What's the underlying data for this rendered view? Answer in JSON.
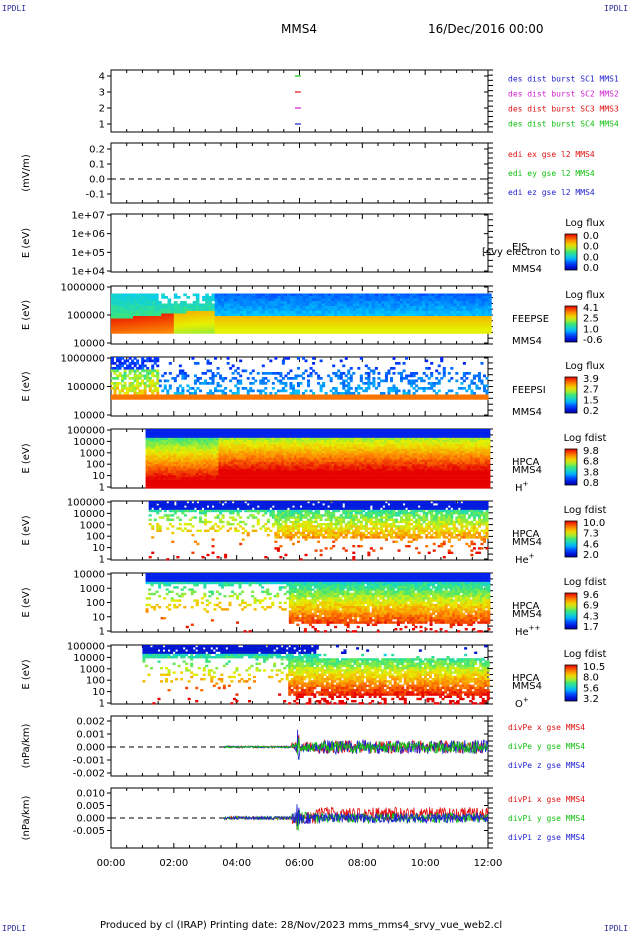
{
  "page": {
    "corner_tl": "IPDLI",
    "corner_tr": "IPDLI",
    "corner_bl": "IPDLI",
    "corner_br": "IPDLI",
    "spacecraft": "MMS4",
    "date": "16/Dec/2016 00:00",
    "footer": "Produced by cl (IRAP)   Printing date: 28/Nov/2023   mms_mms4_srvy_vue_web2.cl"
  },
  "chart_data": [
    {
      "type": "scatter",
      "id": "des-dist",
      "ylabel": "",
      "yticks": [
        "4",
        "3",
        "2",
        "1"
      ],
      "series": [
        {
          "name": "des dist burst SC1 MMS1",
          "color": "#1f1fd0",
          "x": [
            5.95
          ],
          "y": [
            1
          ]
        },
        {
          "name": "des dist burst SC2 MMS2",
          "color": "#d020d0",
          "x": [
            5.95
          ],
          "y": [
            2
          ]
        },
        {
          "name": "des dist burst SC3 MMS3",
          "color": "#e01010",
          "x": [
            5.95
          ],
          "y": [
            3
          ]
        },
        {
          "name": "des dist burst SC4 MMS4",
          "color": "#10c010",
          "x": [
            5.95
          ],
          "y": [
            4
          ]
        }
      ]
    },
    {
      "type": "line",
      "id": "edi",
      "ylabel": "(mV/m)",
      "yticks": [
        "0.2",
        "0.1",
        "0.0",
        "-0.1"
      ],
      "series": [
        {
          "name": "edi ex gse l2 MMS4",
          "color": "#e01010"
        },
        {
          "name": "edi ey gse l2 MMS4",
          "color": "#10c010"
        },
        {
          "name": "edi ez gse l2 MMS4",
          "color": "#1f1fd0"
        }
      ]
    },
    {
      "type": "heatmap",
      "id": "eis",
      "ylabel": "E (eV)",
      "yticks": [
        "1e+07",
        "1e+06",
        "1e+05",
        "1e+04"
      ],
      "label_lines": [
        "EIS",
        "MMS4"
      ],
      "overlay_text": "[svy electron to",
      "colorbar_title": "Log flux",
      "colorbar_ticks": [
        "0.0",
        "0.0",
        "0.0",
        "0.0"
      ]
    },
    {
      "type": "heatmap",
      "id": "feeps-e",
      "ylabel": "E (eV)",
      "yticks": [
        "1000000",
        "100000",
        "10000"
      ],
      "label_lines": [
        "FEEPSE",
        "MMS4"
      ],
      "colorbar_title": "Log flux",
      "colorbar_ticks": [
        "4.1",
        "2.5",
        "1.0",
        "-0.6"
      ]
    },
    {
      "type": "heatmap",
      "id": "feeps-i",
      "ylabel": "E (eV)",
      "yticks": [
        "1000000",
        "100000",
        "10000"
      ],
      "label_lines": [
        "FEEPSI",
        "MMS4"
      ],
      "colorbar_title": "Log flux",
      "colorbar_ticks": [
        "3.9",
        "2.7",
        "1.5",
        "0.2"
      ]
    },
    {
      "type": "heatmap",
      "id": "hpca-h",
      "ylabel": "E (eV)",
      "yticks": [
        "100000",
        "10000",
        "1000",
        "100",
        "10",
        "1"
      ],
      "label_lines": [
        "HPCA",
        "MMS4"
      ],
      "species": "H",
      "species_sup": "+",
      "colorbar_title": "Log fdist",
      "colorbar_ticks": [
        "9.8",
        "6.8",
        "3.8",
        "0.8"
      ]
    },
    {
      "type": "heatmap",
      "id": "hpca-he1",
      "ylabel": "E (eV)",
      "yticks": [
        "100000",
        "10000",
        "1000",
        "100",
        "10",
        "1"
      ],
      "label_lines": [
        "HPCA",
        "MMS4"
      ],
      "species": "He",
      "species_sup": "+",
      "colorbar_title": "Log fdist",
      "colorbar_ticks": [
        "10.0",
        "7.3",
        "4.6",
        "2.0"
      ]
    },
    {
      "type": "heatmap",
      "id": "hpca-he2",
      "ylabel": "E (eV)",
      "yticks": [
        "10000",
        "1000",
        "100",
        "10",
        "1"
      ],
      "label_lines": [
        "HPCA",
        "MMS4"
      ],
      "species": "He",
      "species_sup": "++",
      "colorbar_title": "Log fdist",
      "colorbar_ticks": [
        "9.6",
        "6.9",
        "4.3",
        "1.7"
      ]
    },
    {
      "type": "heatmap",
      "id": "hpca-o",
      "ylabel": "E (eV)",
      "yticks": [
        "100000",
        "10000",
        "1000",
        "100",
        "10",
        "1"
      ],
      "label_lines": [
        "HPCA",
        "MMS4"
      ],
      "species": "O",
      "species_sup": "+",
      "colorbar_title": "Log fdist",
      "colorbar_ticks": [
        "10.5",
        "8.0",
        "5.6",
        "3.2"
      ]
    },
    {
      "type": "line",
      "id": "divpe",
      "ylabel": "(nPa/km)",
      "yticks": [
        "0.002",
        "0.001",
        "0.000",
        "-0.001",
        "-0.002"
      ],
      "series": [
        {
          "name": "divPe x gse MMS4",
          "color": "#e01010"
        },
        {
          "name": "divPe y gse MMS4",
          "color": "#10c010"
        },
        {
          "name": "divPe z gse MMS4",
          "color": "#1f1fd0"
        }
      ]
    },
    {
      "type": "line",
      "id": "divpi",
      "ylabel": "(nPa/km)",
      "yticks": [
        "0.010",
        "0.005",
        "0.000",
        "-0.005"
      ],
      "xticks": [
        "00:00",
        "02:00",
        "04:00",
        "06:00",
        "08:00",
        "10:00",
        "12:00"
      ],
      "series": [
        {
          "name": "divPi x gse MMS4",
          "color": "#e01010"
        },
        {
          "name": "divPi y gse MMS4",
          "color": "#10c010"
        },
        {
          "name": "divPi z gse MMS4",
          "color": "#1f1fd0"
        }
      ]
    }
  ]
}
